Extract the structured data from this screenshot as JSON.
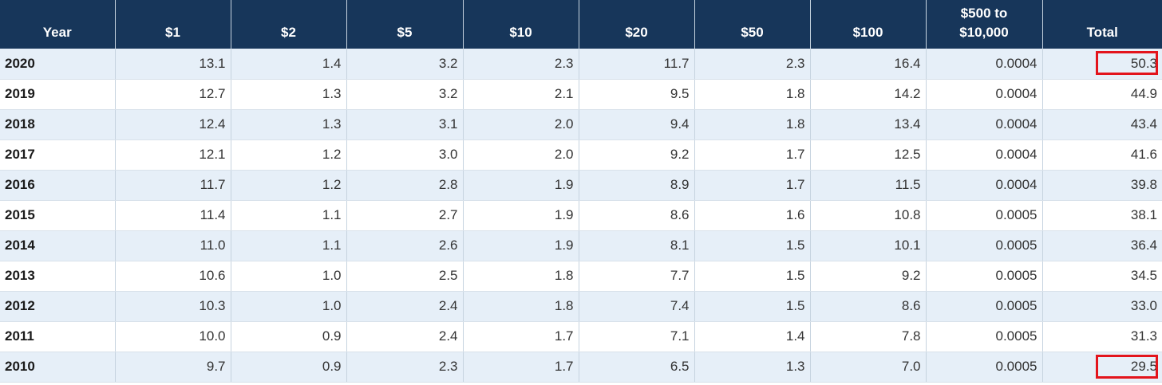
{
  "table": {
    "headers": {
      "year": "Year",
      "d1": "$1",
      "d2": "$2",
      "d5": "$5",
      "d10": "$10",
      "d20": "$20",
      "d50": "$50",
      "d100": "$100",
      "d500_line1": "$500 to",
      "d500_line2": "$10,000",
      "total": "Total"
    },
    "rows": [
      {
        "year": "2020",
        "d1": "13.1",
        "d2": "1.4",
        "d5": "3.2",
        "d10": "2.3",
        "d20": "11.7",
        "d50": "2.3",
        "d100": "16.4",
        "d500": "0.0004",
        "total": "50.3"
      },
      {
        "year": "2019",
        "d1": "12.7",
        "d2": "1.3",
        "d5": "3.2",
        "d10": "2.1",
        "d20": "9.5",
        "d50": "1.8",
        "d100": "14.2",
        "d500": "0.0004",
        "total": "44.9"
      },
      {
        "year": "2018",
        "d1": "12.4",
        "d2": "1.3",
        "d5": "3.1",
        "d10": "2.0",
        "d20": "9.4",
        "d50": "1.8",
        "d100": "13.4",
        "d500": "0.0004",
        "total": "43.4"
      },
      {
        "year": "2017",
        "d1": "12.1",
        "d2": "1.2",
        "d5": "3.0",
        "d10": "2.0",
        "d20": "9.2",
        "d50": "1.7",
        "d100": "12.5",
        "d500": "0.0004",
        "total": "41.6"
      },
      {
        "year": "2016",
        "d1": "11.7",
        "d2": "1.2",
        "d5": "2.8",
        "d10": "1.9",
        "d20": "8.9",
        "d50": "1.7",
        "d100": "11.5",
        "d500": "0.0004",
        "total": "39.8"
      },
      {
        "year": "2015",
        "d1": "11.4",
        "d2": "1.1",
        "d5": "2.7",
        "d10": "1.9",
        "d20": "8.6",
        "d50": "1.6",
        "d100": "10.8",
        "d500": "0.0005",
        "total": "38.1"
      },
      {
        "year": "2014",
        "d1": "11.0",
        "d2": "1.1",
        "d5": "2.6",
        "d10": "1.9",
        "d20": "8.1",
        "d50": "1.5",
        "d100": "10.1",
        "d500": "0.0005",
        "total": "36.4"
      },
      {
        "year": "2013",
        "d1": "10.6",
        "d2": "1.0",
        "d5": "2.5",
        "d10": "1.8",
        "d20": "7.7",
        "d50": "1.5",
        "d100": "9.2",
        "d500": "0.0005",
        "total": "34.5"
      },
      {
        "year": "2012",
        "d1": "10.3",
        "d2": "1.0",
        "d5": "2.4",
        "d10": "1.8",
        "d20": "7.4",
        "d50": "1.5",
        "d100": "8.6",
        "d500": "0.0005",
        "total": "33.0"
      },
      {
        "year": "2011",
        "d1": "10.0",
        "d2": "0.9",
        "d5": "2.4",
        "d10": "1.7",
        "d20": "7.1",
        "d50": "1.4",
        "d100": "7.8",
        "d500": "0.0005",
        "total": "31.3"
      },
      {
        "year": "2010",
        "d1": "9.7",
        "d2": "0.9",
        "d5": "2.3",
        "d10": "1.7",
        "d20": "6.5",
        "d50": "1.3",
        "d100": "7.0",
        "d500": "0.0005",
        "total": "29.5"
      }
    ],
    "highlighted_totals": [
      "2020",
      "2010"
    ]
  },
  "colors": {
    "header_bg": "#17365a",
    "header_text": "#ffffff",
    "row_shade": "#e6eff8",
    "highlight_box": "#e3141c"
  }
}
